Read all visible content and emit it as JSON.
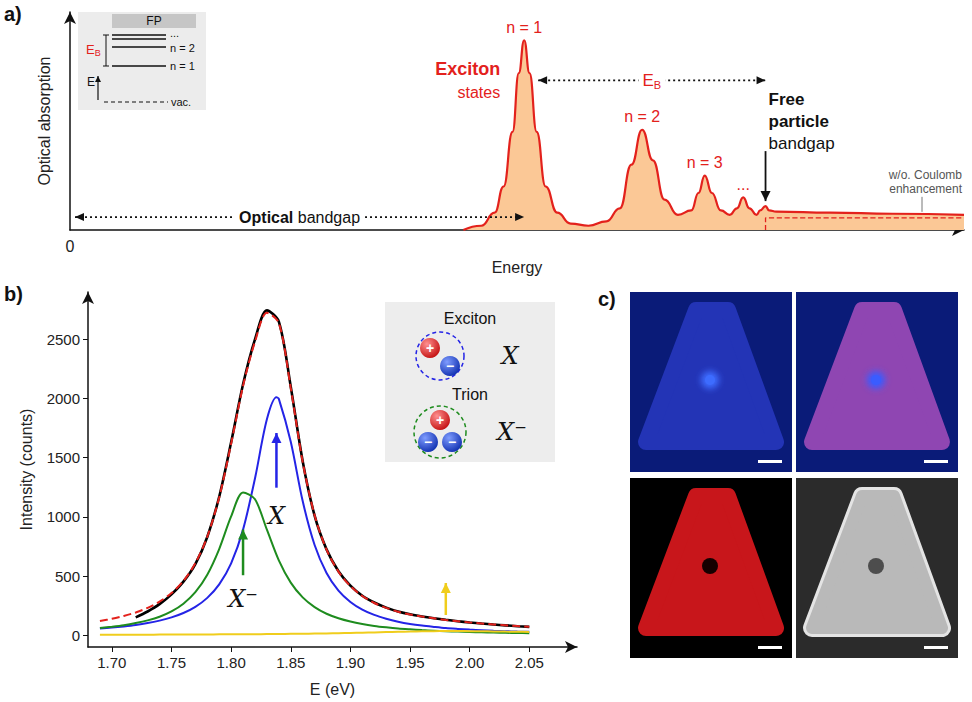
{
  "chart_data": [
    {
      "panel": "a)",
      "type": "area",
      "xlabel": "Energy",
      "ylabel": "Optical absorption",
      "xlim": [
        0,
        100
      ],
      "ylim": [
        0,
        100
      ],
      "xticks": [
        0
      ],
      "tick_labels": "x",
      "series": [
        {
          "x": [
            44,
            46,
            47.5,
            48.5,
            49.5,
            50.2,
            50.8,
            51.4,
            52.2,
            53.2,
            54.5,
            56,
            58,
            60,
            61.5,
            62.8,
            64,
            65.2,
            66.5,
            68,
            69.5,
            70.3,
            71,
            71.8,
            72.8,
            73.8,
            74.6,
            75.3,
            76,
            76.8,
            77.2,
            77.8,
            78.2,
            79,
            85,
            92,
            100
          ],
          "values": [
            0,
            2,
            8,
            20,
            45,
            72,
            87,
            72,
            45,
            20,
            8,
            3,
            2,
            4,
            10,
            30,
            46,
            32,
            14,
            7,
            9,
            17,
            25,
            17,
            9,
            7,
            10,
            15,
            10,
            7,
            9,
            11,
            9,
            8.5,
            8,
            7.5,
            7
          ],
          "color": "#e3211c"
        },
        {
          "type": "line",
          "x": [
            77.8,
            77.8,
            100
          ],
          "values": [
            0,
            5.6,
            5.6
          ],
          "color": "#e3211c",
          "line_style": "dashed"
        }
      ],
      "annotations": {
        "peak_labels": [
          "n = 1",
          "n = 2",
          "n = 3",
          "..."
        ],
        "exciton": [
          "Exciton",
          "states"
        ],
        "binding_energy": {
          "text": "E",
          "sub": "B"
        },
        "free_particle": [
          "Free",
          "particle",
          "bandgap"
        ],
        "optical_bandgap": "Optical bandgap",
        "coulomb": "w/o. Coulomb enhancement",
        "inset": {
          "levels": [
            "FP",
            "...",
            "n = 2",
            "n = 1"
          ],
          "energy": "E",
          "vacuum": "vac."
        }
      }
    },
    {
      "panel": "b)",
      "type": "line",
      "xlabel": "E (eV)",
      "ylabel": "Intensity (counts)",
      "xlim": [
        1.68,
        2.09
      ],
      "xticks": [
        {
          "value": 1.7,
          "label": "1.70"
        },
        {
          "value": 1.75,
          "label": "1.75"
        },
        {
          "value": 1.8,
          "label": "1.80"
        },
        {
          "value": 1.85,
          "label": "1.85"
        },
        {
          "value": 1.9,
          "label": "1.90"
        },
        {
          "value": 1.95,
          "label": "1.95"
        },
        {
          "value": 2.0,
          "label": "2.00"
        },
        {
          "value": 2.05,
          "label": "2.05"
        }
      ],
      "ylim": [
        -100,
        2900
      ],
      "yticks": [
        0,
        500,
        1000,
        1500,
        2000,
        2500
      ],
      "series": [
        {
          "x": [
            1.72,
            1.73,
            1.74,
            1.75,
            1.76,
            1.77,
            1.78,
            1.79,
            1.8,
            1.81,
            1.82,
            1.83,
            1.84,
            1.85,
            1.86,
            1.87,
            1.88,
            1.89,
            1.9,
            1.91,
            1.92,
            1.93,
            1.94,
            1.95,
            1.96,
            1.97,
            1.98,
            1.99,
            2.0,
            2.01,
            2.02,
            2.03,
            2.04,
            2.05
          ],
          "values": [
            150,
            200,
            262,
            345,
            452,
            600,
            830,
            1170,
            1630,
            2120,
            2500,
            2745,
            2650,
            2100,
            1470,
            1010,
            725,
            540,
            418,
            333,
            276,
            233,
            200,
            176,
            158,
            143,
            130,
            118,
            107,
            98,
            90,
            83,
            76,
            70
          ],
          "color": "#000000"
        },
        {
          "x": [
            1.69,
            1.7,
            1.71,
            1.72,
            1.73,
            1.74,
            1.75,
            1.76,
            1.77,
            1.78,
            1.79,
            1.8,
            1.81,
            1.82,
            1.83,
            1.84,
            1.85,
            1.86,
            1.87,
            1.88,
            1.89,
            1.9,
            1.91,
            1.92,
            1.93,
            1.94,
            1.95,
            1.96,
            1.97,
            1.98,
            1.99,
            2.0,
            2.01,
            2.02,
            2.03,
            2.04,
            2.05
          ],
          "values": [
            119,
            138,
            162,
            192,
            231,
            284,
            356,
            458,
            608,
            832,
            1164,
            1617,
            2106,
            2480,
            2724,
            2639,
            2089,
            1464,
            1013,
            722,
            537,
            415,
            331,
            272,
            231,
            198,
            174,
            157,
            142,
            128,
            118,
            108,
            99,
            91,
            84,
            77,
            72
          ],
          "color": "#e3211c",
          "line_style": "dashed"
        },
        {
          "name": "X",
          "x": [
            1.69,
            1.7,
            1.71,
            1.72,
            1.73,
            1.74,
            1.75,
            1.76,
            1.77,
            1.78,
            1.79,
            1.8,
            1.81,
            1.82,
            1.83,
            1.838,
            1.84,
            1.85,
            1.86,
            1.87,
            1.88,
            1.89,
            1.9,
            1.91,
            1.92,
            1.93,
            1.94,
            1.95,
            1.96,
            1.97,
            1.98,
            1.99,
            2.0,
            2.01,
            2.02,
            2.03,
            2.04,
            2.05
          ],
          "values": [
            56,
            64,
            74,
            86,
            102,
            123,
            150,
            187,
            239,
            315,
            429,
            607,
            892,
            1324,
            1824,
            2010,
            1997,
            1634,
            1133,
            762,
            526,
            377,
            281,
            216,
            171,
            139,
            114,
            95,
            81,
            70,
            60,
            53,
            47,
            42,
            37,
            34,
            30,
            28
          ],
          "color": "#2424e6"
        },
        {
          "name": "X⁻",
          "x": [
            1.69,
            1.7,
            1.71,
            1.72,
            1.73,
            1.74,
            1.75,
            1.76,
            1.77,
            1.78,
            1.79,
            1.8,
            1.81,
            1.82,
            1.83,
            1.84,
            1.85,
            1.86,
            1.87,
            1.88,
            1.89,
            1.9,
            1.91,
            1.92,
            1.93,
            1.94,
            1.95,
            1.96,
            1.97,
            1.98,
            1.99,
            2.0,
            2.01,
            2.02,
            2.03,
            2.04,
            2.05
          ],
          "values": [
            60,
            71,
            84,
            102,
            125,
            156,
            201,
            266,
            363,
            511,
            728,
            1003,
            1206,
            1148,
            891,
            632,
            444,
            319,
            237,
            181,
            143,
            115,
            94,
            78,
            66,
            56,
            49,
            43,
            38,
            33,
            30,
            27,
            24,
            22,
            20,
            18,
            17
          ],
          "color": "#1e8c1e"
        },
        {
          "x": [
            1.69,
            1.7,
            1.71,
            1.72,
            1.73,
            1.74,
            1.75,
            1.76,
            1.77,
            1.78,
            1.79,
            1.8,
            1.81,
            1.82,
            1.83,
            1.84,
            1.85,
            1.86,
            1.87,
            1.88,
            1.89,
            1.9,
            1.91,
            1.92,
            1.93,
            1.94,
            1.95,
            1.96,
            1.97,
            1.98,
            1.99,
            2.0,
            2.01,
            2.02,
            2.03,
            2.04,
            2.05
          ],
          "values": [
            3,
            3,
            4,
            4,
            4,
            5,
            5,
            5,
            6,
            6,
            7,
            7,
            8,
            8,
            9,
            10,
            11,
            12,
            14,
            15,
            17,
            19,
            21,
            23,
            26,
            28,
            30,
            33,
            34,
            35,
            35,
            34,
            33,
            32,
            30,
            29,
            27
          ],
          "color": "#f0cd1c"
        }
      ],
      "inset": [
        {
          "label": "Exciton",
          "symbol": "X"
        },
        {
          "label": "Trion",
          "symbol": "X⁻"
        }
      ],
      "charges": [
        "+",
        "−"
      ]
    }
  ],
  "image_panel": {
    "label": "c)"
  }
}
